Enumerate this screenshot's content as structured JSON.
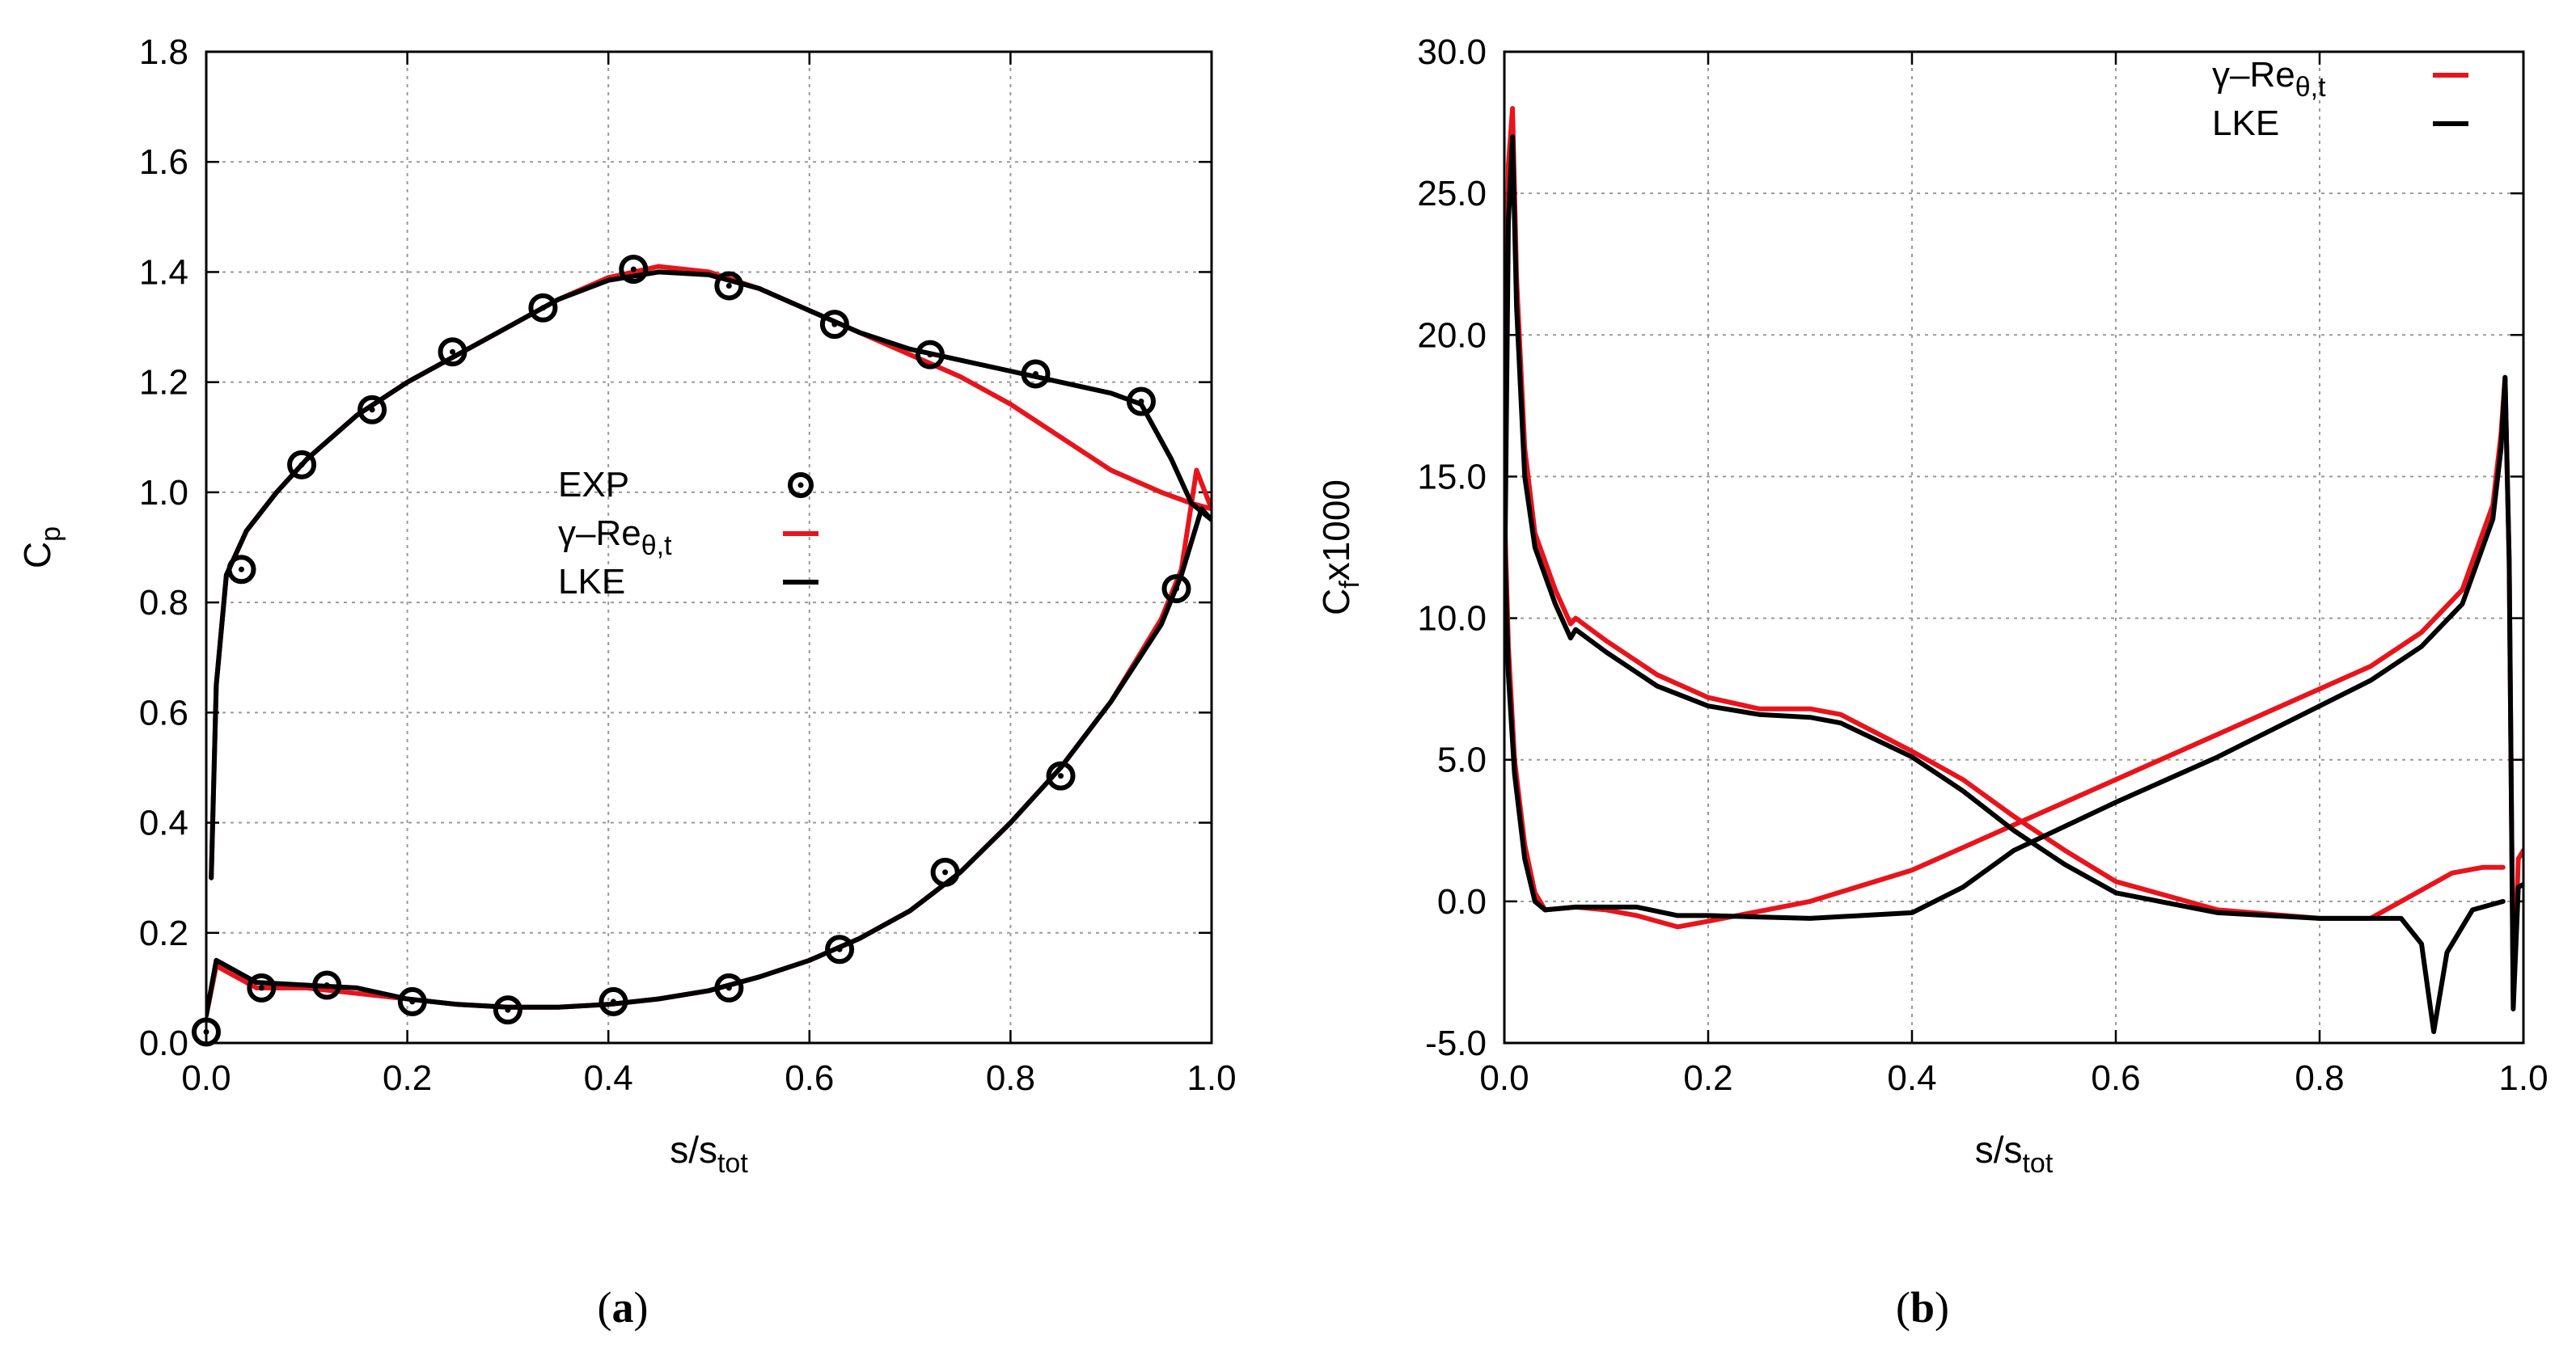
{
  "colors": {
    "red": "#e8141c",
    "black": "#000000",
    "grid": "#9a9a9a"
  },
  "chart_data": [
    {
      "id": "a",
      "type": "line",
      "caption_open": "(",
      "caption_letter": "a",
      "caption_close": ")",
      "ylabel_main": "C",
      "ylabel_sub": "p",
      "xlabel_main": "s/s",
      "xlabel_sub": "tot",
      "xlim": [
        0,
        1
      ],
      "ylim": [
        0,
        1.8
      ],
      "xticks": [
        0.0,
        0.2,
        0.4,
        0.6,
        0.8,
        1.0
      ],
      "xtick_labels": [
        "0.0",
        "0.2",
        "0.4",
        "0.6",
        "0.8",
        "1.0"
      ],
      "yticks": [
        0.0,
        0.2,
        0.4,
        0.6,
        0.8,
        1.0,
        1.2,
        1.4,
        1.6,
        1.8
      ],
      "ytick_labels": [
        "0.0",
        "0.2",
        "0.4",
        "0.6",
        "0.8",
        "1.0",
        "1.2",
        "1.4",
        "1.6",
        "1.8"
      ],
      "legend": [
        {
          "label_main": "EXP",
          "label_sub": "",
          "marker": "circle-dot"
        },
        {
          "label_main": "γ–Re",
          "label_sub": "θ,t",
          "color": "#e8141c"
        },
        {
          "label_main": "LKE",
          "label_sub": "",
          "color": "#000000"
        }
      ],
      "exp": {
        "name": "EXP",
        "x": [
          0.0,
          0.035,
          0.055,
          0.095,
          0.12,
          0.165,
          0.205,
          0.245,
          0.3,
          0.335,
          0.405,
          0.425,
          0.52,
          0.52,
          0.625,
          0.63,
          0.72,
          0.735,
          0.825,
          0.85,
          0.93,
          0.965
        ],
        "y": [
          0.02,
          0.86,
          0.1,
          1.05,
          0.105,
          1.15,
          0.075,
          1.255,
          0.06,
          1.335,
          0.075,
          1.405,
          1.375,
          0.1,
          1.305,
          0.17,
          1.25,
          0.31,
          1.215,
          0.485,
          1.165,
          0.825
        ]
      },
      "series": [
        {
          "name": "γ–Re θ,t (suction side)",
          "color": "#e8141c",
          "x": [
            0.005,
            0.01,
            0.02,
            0.04,
            0.07,
            0.1,
            0.15,
            0.2,
            0.25,
            0.3,
            0.35,
            0.4,
            0.45,
            0.5,
            0.55,
            0.6,
            0.65,
            0.7,
            0.75,
            0.8,
            0.85,
            0.9,
            0.95,
            0.98,
            1.0
          ],
          "y": [
            0.3,
            0.65,
            0.85,
            0.93,
            1.0,
            1.06,
            1.14,
            1.2,
            1.25,
            1.3,
            1.35,
            1.39,
            1.41,
            1.4,
            1.37,
            1.33,
            1.29,
            1.25,
            1.21,
            1.16,
            1.1,
            1.04,
            1.0,
            0.98,
            0.97
          ]
        },
        {
          "name": "γ–Re θ,t (pressure side)",
          "color": "#e8141c",
          "x": [
            0.0,
            0.01,
            0.02,
            0.05,
            0.1,
            0.15,
            0.2,
            0.25,
            0.3,
            0.35,
            0.4,
            0.45,
            0.5,
            0.55,
            0.6,
            0.65,
            0.7,
            0.75,
            0.8,
            0.85,
            0.9,
            0.95,
            0.97,
            0.985,
            1.0
          ],
          "y": [
            0.05,
            0.14,
            0.13,
            0.1,
            0.1,
            0.09,
            0.08,
            0.07,
            0.065,
            0.065,
            0.07,
            0.08,
            0.095,
            0.12,
            0.15,
            0.19,
            0.24,
            0.31,
            0.4,
            0.5,
            0.62,
            0.77,
            0.86,
            1.04,
            0.97
          ]
        },
        {
          "name": "LKE (suction side)",
          "color": "#000000",
          "x": [
            0.005,
            0.01,
            0.02,
            0.04,
            0.07,
            0.1,
            0.15,
            0.2,
            0.25,
            0.3,
            0.35,
            0.4,
            0.45,
            0.5,
            0.55,
            0.6,
            0.65,
            0.7,
            0.75,
            0.8,
            0.85,
            0.9,
            0.93,
            0.96,
            0.98,
            1.0
          ],
          "y": [
            0.3,
            0.65,
            0.85,
            0.93,
            1.0,
            1.06,
            1.14,
            1.2,
            1.25,
            1.3,
            1.35,
            1.385,
            1.4,
            1.395,
            1.37,
            1.33,
            1.29,
            1.26,
            1.24,
            1.22,
            1.2,
            1.18,
            1.16,
            1.06,
            0.98,
            0.95
          ]
        },
        {
          "name": "LKE (pressure side)",
          "color": "#000000",
          "x": [
            0.0,
            0.01,
            0.02,
            0.05,
            0.1,
            0.15,
            0.2,
            0.25,
            0.3,
            0.35,
            0.4,
            0.45,
            0.5,
            0.55,
            0.6,
            0.65,
            0.7,
            0.75,
            0.8,
            0.85,
            0.9,
            0.95,
            0.97,
            0.99,
            1.0
          ],
          "y": [
            0.05,
            0.15,
            0.14,
            0.11,
            0.105,
            0.1,
            0.08,
            0.07,
            0.065,
            0.065,
            0.07,
            0.08,
            0.095,
            0.12,
            0.15,
            0.19,
            0.24,
            0.31,
            0.4,
            0.5,
            0.62,
            0.76,
            0.85,
            0.97,
            0.95
          ]
        }
      ]
    },
    {
      "id": "b",
      "type": "line",
      "caption_open": "(",
      "caption_letter": "b",
      "caption_close": ")",
      "ylabel_main": "C",
      "ylabel_sub": "f",
      "ylabel_suffix": "x1000",
      "xlabel_main": "s/s",
      "xlabel_sub": "tot",
      "xlim": [
        0,
        1
      ],
      "ylim": [
        -5,
        30
      ],
      "xticks": [
        0.0,
        0.2,
        0.4,
        0.6,
        0.8,
        1.0
      ],
      "xtick_labels": [
        "0.0",
        "0.2",
        "0.4",
        "0.6",
        "0.8",
        "1.0"
      ],
      "yticks": [
        -5,
        0,
        5,
        10,
        15,
        20,
        25,
        30
      ],
      "ytick_labels": [
        "-5.0",
        "0.0",
        "5.0",
        "10.0",
        "15.0",
        "20.0",
        "25.0",
        "30.0"
      ],
      "legend": [
        {
          "label_main": "γ–Re",
          "label_sub": "θ,t",
          "color": "#e8141c"
        },
        {
          "label_main": "LKE",
          "label_sub": "",
          "color": "#000000"
        }
      ],
      "series": [
        {
          "name": "γ–Re θ,t (suction side)",
          "color": "#e8141c",
          "x": [
            0.0,
            0.004,
            0.008,
            0.012,
            0.02,
            0.03,
            0.05,
            0.065,
            0.07,
            0.1,
            0.15,
            0.2,
            0.25,
            0.3,
            0.33,
            0.4,
            0.45,
            0.5,
            0.55,
            0.6,
            0.7,
            0.8,
            0.85,
            0.88,
            0.93,
            0.96,
            0.98
          ],
          "y": [
            12,
            26,
            28,
            22,
            16,
            13,
            11,
            9.8,
            10,
            9.2,
            8,
            7.2,
            6.8,
            6.8,
            6.6,
            5.3,
            4.3,
            3,
            1.8,
            0.7,
            -0.3,
            -0.6,
            -0.6,
            0,
            1.0,
            1.2,
            1.2
          ]
        },
        {
          "name": "γ–Re θ,t (pressure side)",
          "color": "#e8141c",
          "x": [
            0.0,
            0.004,
            0.01,
            0.02,
            0.03,
            0.04,
            0.07,
            0.1,
            0.13,
            0.17,
            0.2,
            0.3,
            0.4,
            0.5,
            0.6,
            0.7,
            0.8,
            0.85,
            0.9,
            0.94,
            0.97,
            0.978,
            0.982,
            0.986,
            0.99,
            0.995,
            1.0
          ],
          "y": [
            14,
            9,
            5,
            2,
            0.3,
            -0.3,
            -0.2,
            -0.3,
            -0.5,
            -0.9,
            -0.7,
            0,
            1.1,
            2.7,
            4.3,
            5.9,
            7.5,
            8.3,
            9.5,
            11,
            14,
            16.5,
            18.5,
            12,
            -3.5,
            1.5,
            1.8
          ]
        },
        {
          "name": "LKE (suction side)",
          "color": "#000000",
          "x": [
            0.0,
            0.004,
            0.008,
            0.012,
            0.02,
            0.03,
            0.05,
            0.065,
            0.07,
            0.1,
            0.15,
            0.2,
            0.25,
            0.3,
            0.33,
            0.4,
            0.45,
            0.5,
            0.55,
            0.6,
            0.7,
            0.8,
            0.85,
            0.88,
            0.9,
            0.912,
            0.925,
            0.95,
            0.98
          ],
          "y": [
            10,
            24,
            27,
            21,
            15,
            12.5,
            10.5,
            9.3,
            9.6,
            8.8,
            7.6,
            6.9,
            6.6,
            6.5,
            6.3,
            5.1,
            3.9,
            2.5,
            1.3,
            0.3,
            -0.4,
            -0.6,
            -0.6,
            -0.6,
            -1.5,
            -4.6,
            -1.8,
            -0.3,
            0
          ]
        },
        {
          "name": "LKE (pressure side)",
          "color": "#000000",
          "x": [
            0.0,
            0.004,
            0.01,
            0.02,
            0.03,
            0.04,
            0.07,
            0.1,
            0.13,
            0.17,
            0.2,
            0.3,
            0.4,
            0.45,
            0.5,
            0.6,
            0.7,
            0.8,
            0.85,
            0.9,
            0.94,
            0.97,
            0.978,
            0.982,
            0.986,
            0.99,
            0.995,
            1.0
          ],
          "y": [
            13,
            8,
            4.5,
            1.5,
            0,
            -0.3,
            -0.2,
            -0.2,
            -0.2,
            -0.5,
            -0.5,
            -0.6,
            -0.4,
            0.5,
            1.8,
            3.5,
            5.1,
            6.9,
            7.8,
            9,
            10.5,
            13.5,
            16,
            18.5,
            12,
            -3.8,
            0.5,
            0.6
          ]
        }
      ]
    }
  ]
}
